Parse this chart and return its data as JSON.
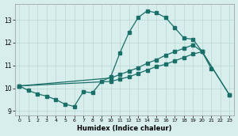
{
  "xlabel": "Humidex (Indice chaleur)",
  "xlim": [
    -0.5,
    23.5
  ],
  "ylim": [
    8.8,
    13.7
  ],
  "xticks": [
    0,
    1,
    2,
    3,
    4,
    5,
    6,
    7,
    8,
    9,
    10,
    11,
    12,
    13,
    14,
    15,
    16,
    17,
    18,
    19,
    20,
    21,
    22,
    23
  ],
  "yticks": [
    9,
    10,
    11,
    12,
    13
  ],
  "bg_color": "#d8eeed",
  "line_color": "#1a7068",
  "grid_color": "#b8d8d4",
  "line1_x": [
    0,
    1,
    2,
    3,
    4,
    5,
    6,
    7,
    8,
    9,
    10,
    11,
    12,
    13,
    14,
    15,
    16,
    17,
    18,
    19,
    20,
    21
  ],
  "line1_y": [
    10.1,
    9.9,
    9.75,
    9.65,
    9.5,
    9.3,
    9.2,
    9.85,
    9.8,
    10.3,
    10.5,
    11.55,
    12.45,
    13.1,
    13.4,
    13.3,
    13.1,
    12.65,
    12.2,
    12.15,
    11.6,
    10.85
  ],
  "line2_x": [
    0,
    10,
    11,
    12,
    13,
    14,
    15,
    16,
    17,
    18,
    19,
    20,
    23
  ],
  "line2_y": [
    10.1,
    10.45,
    10.6,
    10.75,
    10.9,
    11.1,
    11.25,
    11.45,
    11.6,
    11.75,
    11.9,
    11.6,
    9.7
  ],
  "line3_x": [
    0,
    10,
    11,
    12,
    13,
    14,
    15,
    16,
    17,
    18,
    19,
    20,
    23
  ],
  "line3_y": [
    10.1,
    10.3,
    10.4,
    10.5,
    10.65,
    10.8,
    10.95,
    11.05,
    11.2,
    11.35,
    11.5,
    11.6,
    9.7
  ]
}
